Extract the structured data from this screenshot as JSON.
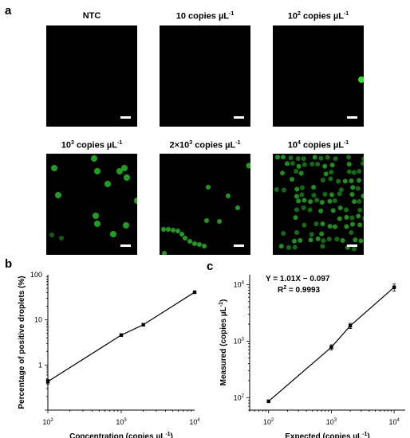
{
  "panel_labels": {
    "a": "a",
    "b": "b",
    "c": "c"
  },
  "micrographs": [
    {
      "title": "NTC"
    },
    {
      "title": "10 copies µL",
      "title_sup": "-1"
    },
    {
      "title": "10",
      "title_sup": "2",
      "title_rest": " copies µL",
      "title_sup2": "-1"
    },
    {
      "title": "10",
      "title_sup": "3",
      "title_rest": " copies µL",
      "title_sup2": "-1"
    },
    {
      "title": "2×10",
      "title_sup": "3",
      "title_rest": " copies µL",
      "title_sup2": "-1"
    },
    {
      "title": "10",
      "title_sup": "4",
      "title_rest": " copies µL",
      "title_sup2": "-1"
    }
  ],
  "colors": {
    "droplet": "#22c322",
    "droplet_dim": "#107a10",
    "background": "#000000"
  },
  "chart_data": [
    {
      "type": "line",
      "panel": "b",
      "xlabel": "Concentration (copies µL",
      "xlabel_sup": "-1",
      "xlabel_end": ")",
      "ylabel": "Percentage of positive droplets (%)",
      "x_scale": "log",
      "y_scale": "log",
      "xlim": [
        100,
        10000
      ],
      "ylim": [
        0.1,
        100
      ],
      "x_ticks": [
        {
          "base": "10",
          "exp": "2",
          "v": 100
        },
        {
          "base": "10",
          "exp": "3",
          "v": 1000
        },
        {
          "base": "10",
          "exp": "4",
          "v": 10000
        }
      ],
      "y_ticks": [
        {
          "label": "100",
          "v": 100
        },
        {
          "label": "10",
          "v": 10
        },
        {
          "label": "1",
          "v": 1
        }
      ],
      "x": [
        100,
        1000,
        2000,
        10000
      ],
      "values": [
        0.43,
        4.6,
        7.8,
        41
      ],
      "error": [
        0.05,
        0.25,
        0.5,
        1.5
      ],
      "grid": false
    },
    {
      "type": "line",
      "panel": "c",
      "xlabel": "Expected (copies µL",
      "xlabel_sup": "-1",
      "xlabel_end": ")",
      "ylabel": "Measured (copies µL",
      "ylabel_sup": "-1",
      "ylabel_end": ")",
      "x_scale": "log",
      "y_scale": "log",
      "xlim": [
        50,
        15000
      ],
      "ylim": [
        60,
        15000
      ],
      "x_ticks": [
        {
          "base": "10",
          "exp": "2",
          "v": 100
        },
        {
          "base": "10",
          "exp": "3",
          "v": 1000
        },
        {
          "base": "10",
          "exp": "4",
          "v": 10000
        }
      ],
      "y_ticks": [
        {
          "base": "10",
          "exp": "4",
          "v": 10000
        },
        {
          "base": "10",
          "exp": "3",
          "v": 1000
        },
        {
          "base": "10",
          "exp": "2",
          "v": 100
        }
      ],
      "x": [
        100,
        1000,
        2000,
        10000
      ],
      "values": [
        86,
        780,
        1870,
        9000
      ],
      "error": [
        3,
        80,
        200,
        1300
      ],
      "grid": false,
      "annotation_eq": "Y = 1.01X − 0.097",
      "annotation_r2": "R",
      "annotation_r2_sup": "2",
      "annotation_r2_val": " = 0.9993"
    }
  ]
}
